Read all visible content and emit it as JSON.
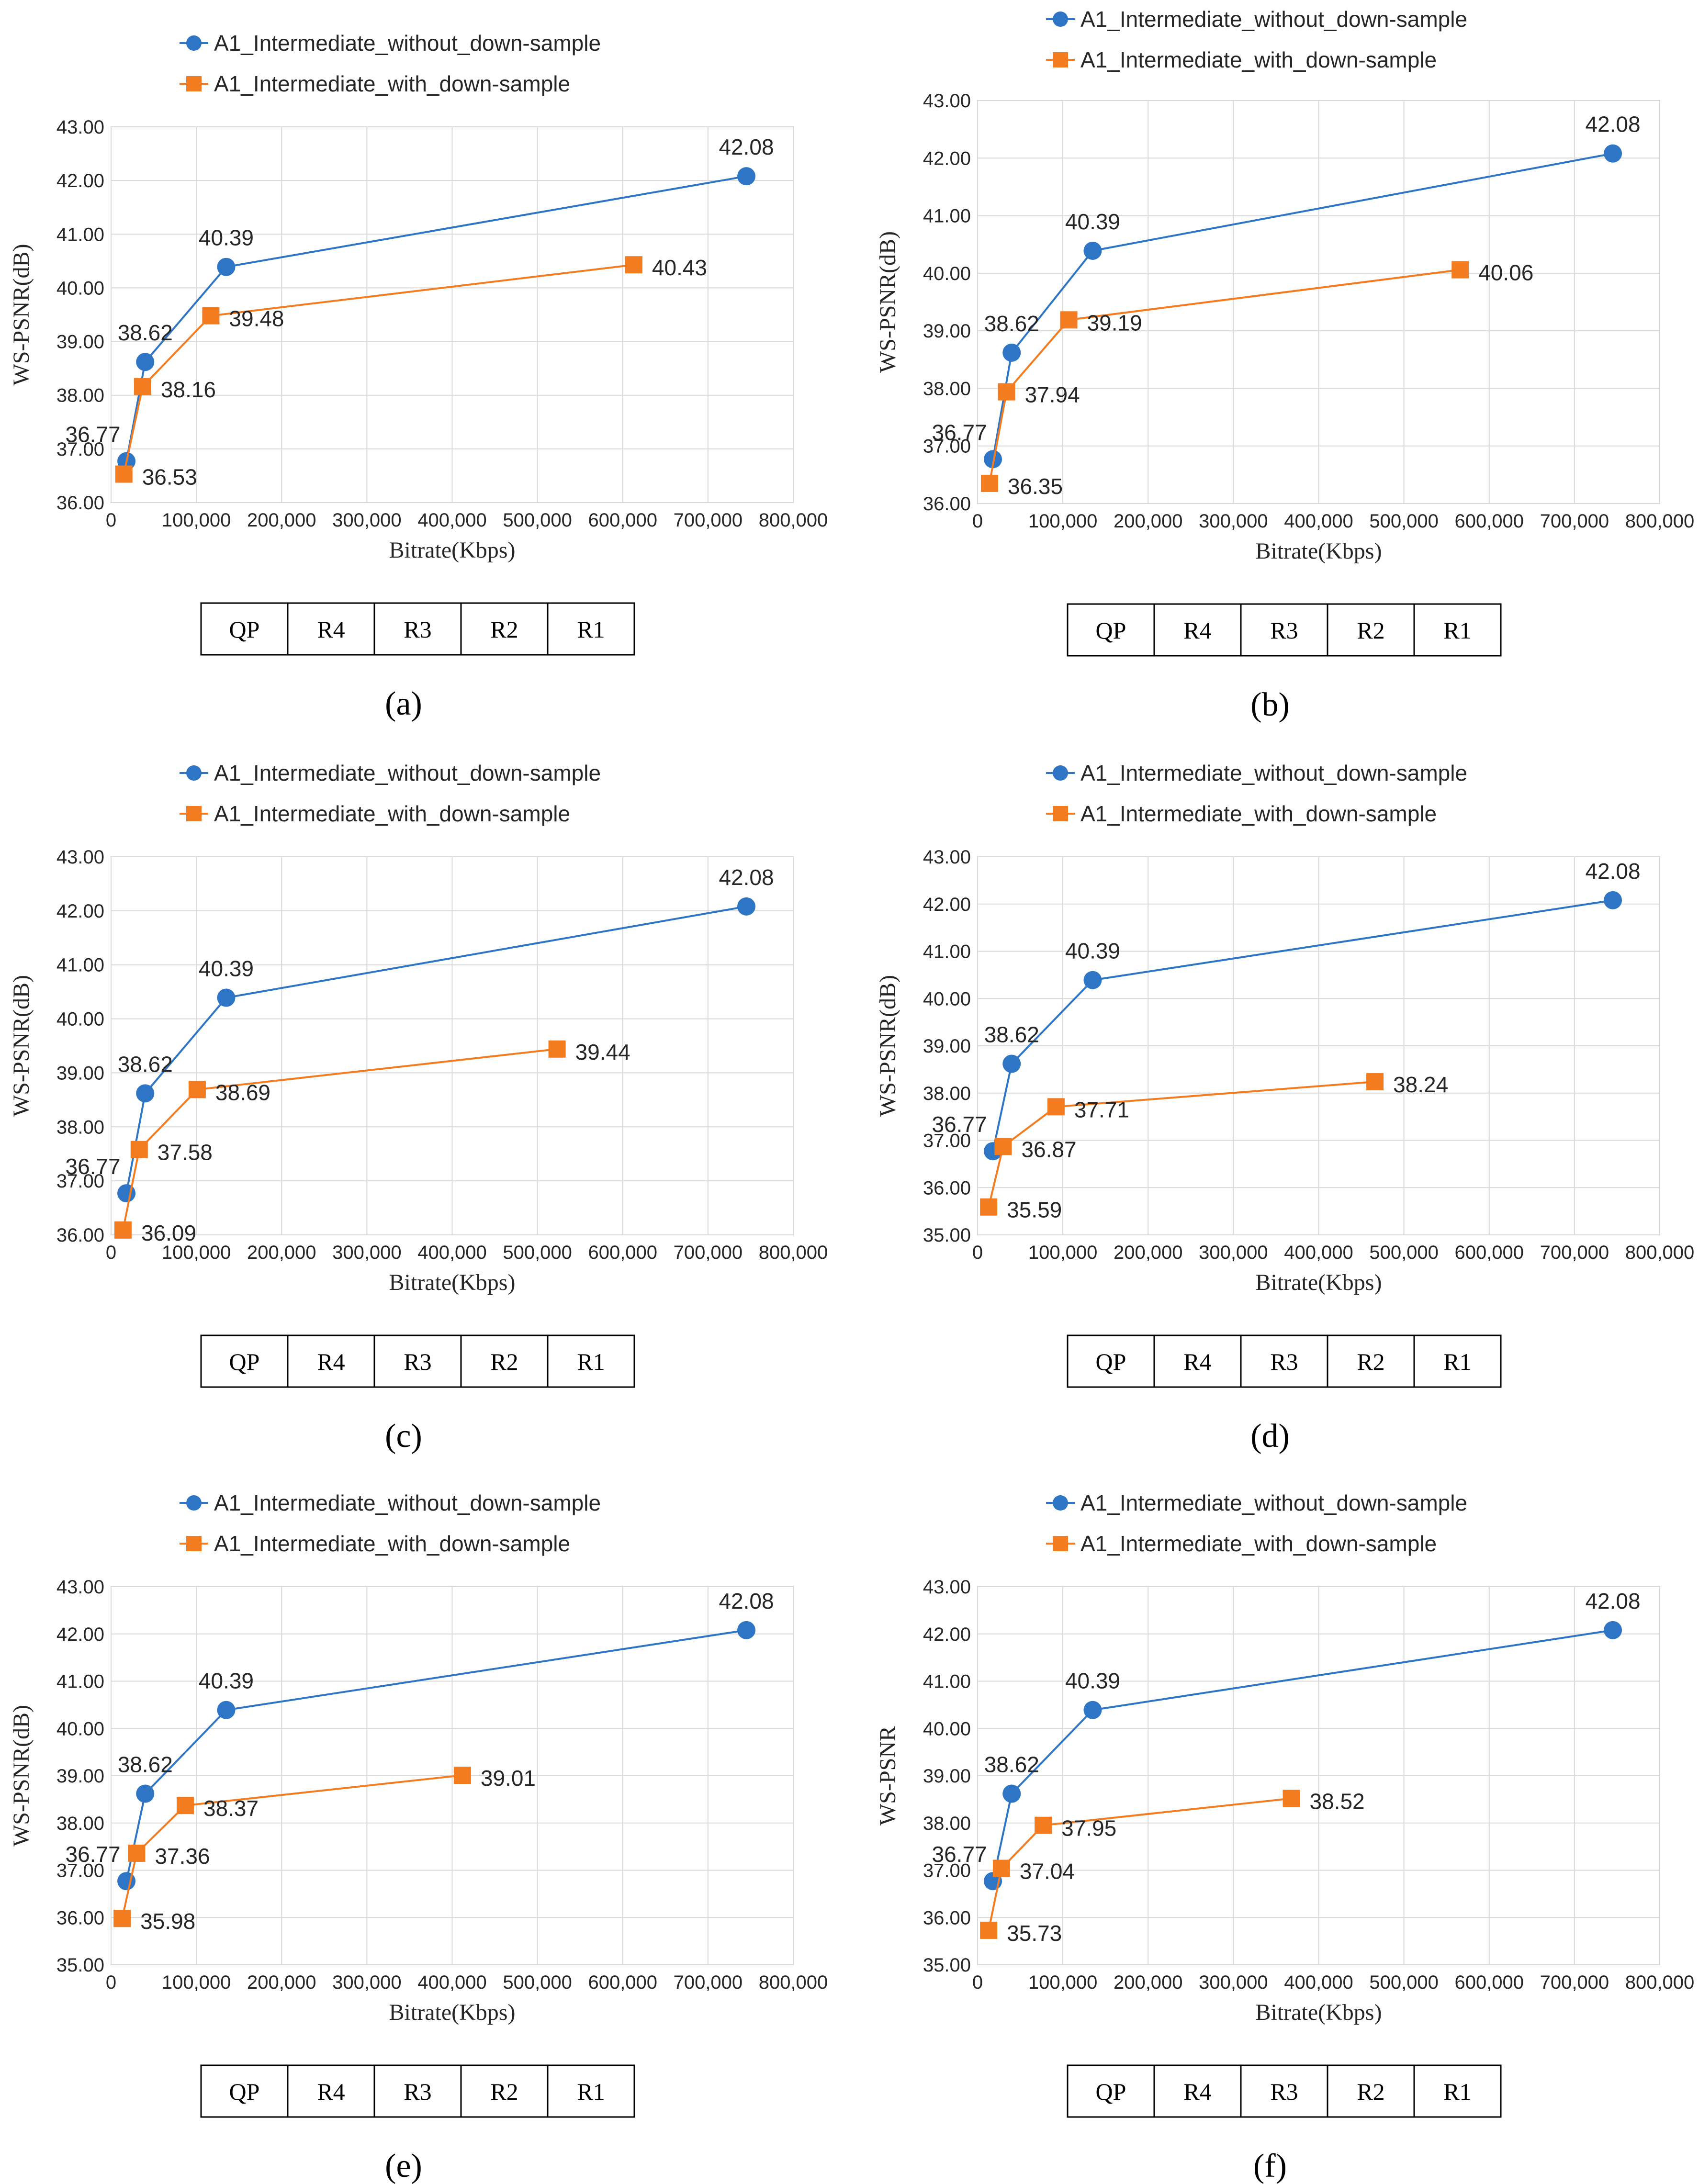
{
  "colors": {
    "series1": "#2e75c6",
    "series2": "#f47c20",
    "grid": "#d9d9d9",
    "axis": "#bfbfbf",
    "text": "#262626"
  },
  "qp_table": [
    "QP",
    "R4",
    "R3",
    "R2",
    "R1"
  ],
  "chart_data": [
    {
      "type": "line",
      "panel_label": "(a)",
      "xlabel": "Bitrate(Kbps)",
      "ylabel": "WS-PSNR(dB)",
      "xlim": [
        0,
        800000
      ],
      "ylim": [
        36,
        43
      ],
      "xticks": [
        "0",
        "100,000",
        "200,000",
        "300,000",
        "400,000",
        "500,000",
        "600,000",
        "700,000",
        "800,000"
      ],
      "yticks": [
        "36.00",
        "37.00",
        "38.00",
        "39.00",
        "40.00",
        "41.00",
        "42.00",
        "43.00"
      ],
      "legend": "top",
      "series": [
        {
          "name": "A1_Intermediate_without_down-sample",
          "marker": "circle",
          "x": [
            18000,
            40000,
            135000,
            745000
          ],
          "y": [
            36.77,
            38.62,
            40.39,
            42.08
          ],
          "labels": [
            "36.77",
            "38.62",
            "40.39",
            "42.08"
          ]
        },
        {
          "name": "A1_Intermediate_with_down-sample",
          "marker": "square",
          "x": [
            15000,
            37000,
            117000,
            613000
          ],
          "y": [
            36.53,
            38.16,
            39.48,
            40.43
          ],
          "labels": [
            "36.53",
            "38.16",
            "39.48",
            "40.43"
          ]
        }
      ]
    },
    {
      "type": "line",
      "panel_label": "(b)",
      "xlabel": "Bitrate(Kbps)",
      "ylabel": "WS-PSNR(dB)",
      "xlim": [
        0,
        800000
      ],
      "ylim": [
        36,
        43
      ],
      "xticks": [
        "0",
        "100,000",
        "200,000",
        "300,000",
        "400,000",
        "500,000",
        "600,000",
        "700,000",
        "800,000"
      ],
      "yticks": [
        "36.00",
        "37.00",
        "38.00",
        "39.00",
        "40.00",
        "41.00",
        "42.00",
        "43.00"
      ],
      "legend": "top",
      "series": [
        {
          "name": "A1_Intermediate_without_down-sample",
          "marker": "circle",
          "x": [
            18000,
            40000,
            135000,
            745000
          ],
          "y": [
            36.77,
            38.62,
            40.39,
            42.08
          ],
          "labels": [
            "36.77",
            "38.62",
            "40.39",
            "42.08"
          ]
        },
        {
          "name": "A1_Intermediate_with_down-sample",
          "marker": "square",
          "x": [
            14000,
            34000,
            107000,
            566000
          ],
          "y": [
            36.35,
            37.94,
            39.19,
            40.06
          ],
          "labels": [
            "36.35",
            "37.94",
            "39.19",
            "40.06"
          ]
        }
      ]
    },
    {
      "type": "line",
      "panel_label": "(c)",
      "xlabel": "Bitrate(Kbps)",
      "ylabel": "WS-PSNR(dB)",
      "xlim": [
        0,
        800000
      ],
      "ylim": [
        36,
        43
      ],
      "xticks": [
        "0",
        "100,000",
        "200,000",
        "300,000",
        "400,000",
        "500,000",
        "600,000",
        "700,000",
        "800,000"
      ],
      "yticks": [
        "36.00",
        "37.00",
        "38.00",
        "39.00",
        "40.00",
        "41.00",
        "42.00",
        "43.00"
      ],
      "legend": "top",
      "series": [
        {
          "name": "A1_Intermediate_without_down-sample",
          "marker": "circle",
          "x": [
            18000,
            40000,
            135000,
            745000
          ],
          "y": [
            36.77,
            38.62,
            40.39,
            42.08
          ],
          "labels": [
            "36.77",
            "38.62",
            "40.39",
            "42.08"
          ]
        },
        {
          "name": "A1_Intermediate_with_down-sample",
          "marker": "square",
          "x": [
            14000,
            33000,
            101000,
            523000
          ],
          "y": [
            36.09,
            37.58,
            38.69,
            39.44
          ],
          "labels": [
            "36.09",
            "37.58",
            "38.69",
            "39.44"
          ]
        }
      ]
    },
    {
      "type": "line",
      "panel_label": "(d)",
      "xlabel": "Bitrate(Kbps)",
      "ylabel": "WS-PSNR(dB)",
      "xlim": [
        0,
        800000
      ],
      "ylim": [
        35,
        43
      ],
      "xticks": [
        "0",
        "100,000",
        "200,000",
        "300,000",
        "400,000",
        "500,000",
        "600,000",
        "700,000",
        "800,000"
      ],
      "yticks": [
        "35.00",
        "36.00",
        "37.00",
        "38.00",
        "39.00",
        "40.00",
        "41.00",
        "42.00",
        "43.00"
      ],
      "legend": "top",
      "series": [
        {
          "name": "A1_Intermediate_without_down-sample",
          "marker": "circle",
          "x": [
            18000,
            40000,
            135000,
            745000
          ],
          "y": [
            36.77,
            38.62,
            40.39,
            42.08
          ],
          "labels": [
            "36.77",
            "38.62",
            "40.39",
            "42.08"
          ]
        },
        {
          "name": "A1_Intermediate_with_down-sample",
          "marker": "square",
          "x": [
            13000,
            30000,
            92000,
            466000
          ],
          "y": [
            35.59,
            36.87,
            37.71,
            38.24
          ],
          "labels": [
            "35.59",
            "36.87",
            "37.71",
            "38.24"
          ]
        }
      ]
    },
    {
      "type": "line",
      "panel_label": "(e)",
      "xlabel": "Bitrate(Kbps)",
      "ylabel": "WS-PSNR(dB)",
      "xlim": [
        0,
        800000
      ],
      "ylim": [
        35,
        43
      ],
      "xticks": [
        "0",
        "100,000",
        "200,000",
        "300,000",
        "400,000",
        "500,000",
        "600,000",
        "700,000",
        "800,000"
      ],
      "yticks": [
        "35.00",
        "36.00",
        "37.00",
        "38.00",
        "39.00",
        "40.00",
        "41.00",
        "42.00",
        "43.00"
      ],
      "legend": "top",
      "series": [
        {
          "name": "A1_Intermediate_without_down-sample",
          "marker": "circle",
          "x": [
            18000,
            40000,
            135000,
            745000
          ],
          "y": [
            36.77,
            38.62,
            40.39,
            42.08
          ],
          "labels": [
            "36.77",
            "38.62",
            "40.39",
            "42.08"
          ]
        },
        {
          "name": "A1_Intermediate_with_down-sample",
          "marker": "square",
          "x": [
            13000,
            30000,
            87000,
            412000
          ],
          "y": [
            35.98,
            37.36,
            38.37,
            39.01
          ],
          "labels": [
            "35.98",
            "37.36",
            "38.37",
            "39.01"
          ]
        }
      ]
    },
    {
      "type": "line",
      "panel_label": "(f)",
      "xlabel": "Bitrate(Kbps)",
      "ylabel": "WS-PSNR",
      "xlim": [
        0,
        800000
      ],
      "ylim": [
        35,
        43
      ],
      "xticks": [
        "0",
        "100,000",
        "200,000",
        "300,000",
        "400,000",
        "500,000",
        "600,000",
        "700,000",
        "800,000"
      ],
      "yticks": [
        "35.00",
        "36.00",
        "37.00",
        "38.00",
        "39.00",
        "40.00",
        "41.00",
        "42.00",
        "43.00"
      ],
      "legend": "top",
      "series": [
        {
          "name": "A1_Intermediate_without_down-sample",
          "marker": "circle",
          "x": [
            18000,
            40000,
            135000,
            745000
          ],
          "y": [
            36.77,
            38.62,
            40.39,
            42.08
          ],
          "labels": [
            "36.77",
            "38.62",
            "40.39",
            "42.08"
          ]
        },
        {
          "name": "A1_Intermediate_with_down-sample",
          "marker": "square",
          "x": [
            13000,
            28000,
            77000,
            368000
          ],
          "y": [
            35.73,
            37.04,
            37.95,
            38.52
          ],
          "labels": [
            "35.73",
            "37.04",
            "37.95",
            "38.52"
          ]
        }
      ]
    }
  ]
}
